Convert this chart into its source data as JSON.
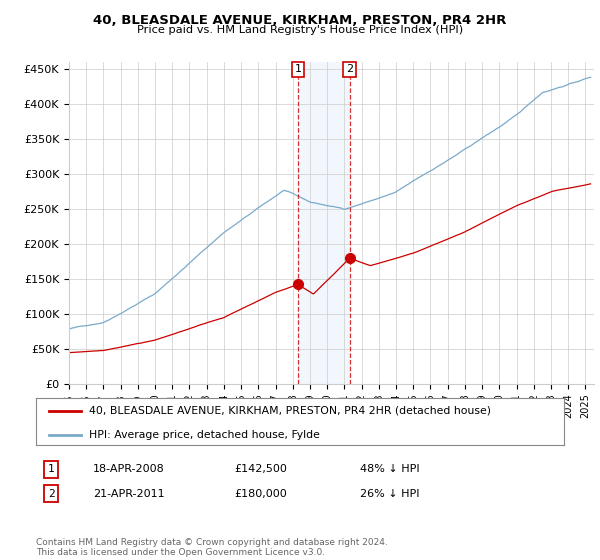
{
  "title": "40, BLEASDALE AVENUE, KIRKHAM, PRESTON, PR4 2HR",
  "subtitle": "Price paid vs. HM Land Registry's House Price Index (HPI)",
  "ylabel_ticks": [
    0,
    50000,
    100000,
    150000,
    200000,
    250000,
    300000,
    350000,
    400000,
    450000
  ],
  "ylabel_labels": [
    "£0",
    "£50K",
    "£100K",
    "£150K",
    "£200K",
    "£250K",
    "£300K",
    "£350K",
    "£400K",
    "£450K"
  ],
  "xlim": [
    1995.0,
    2025.5
  ],
  "ylim": [
    0,
    460000
  ],
  "red_color": "#cc0000",
  "blue_color": "#7aaaca",
  "vline_color": "#cc0000",
  "shade_color": "#d8eaf8",
  "grid_color": "#cccccc",
  "legend_label_red": "40, BLEASDALE AVENUE, KIRKHAM, PRESTON, PR4 2HR (detached house)",
  "legend_label_blue": "HPI: Average price, detached house, Fylde",
  "transaction1_label": "1",
  "transaction1_date": "18-APR-2008",
  "transaction1_price": "£142,500",
  "transaction1_hpi": "48% ↓ HPI",
  "transaction1_year": 2008.3,
  "transaction1_price_val": 142500,
  "transaction2_label": "2",
  "transaction2_date": "21-APR-2011",
  "transaction2_price": "£180,000",
  "transaction2_hpi": "26% ↓ HPI",
  "transaction2_year": 2011.3,
  "transaction2_price_val": 180000,
  "footnote": "Contains HM Land Registry data © Crown copyright and database right 2024.\nThis data is licensed under the Open Government Licence v3.0.",
  "background_color": "#ffffff",
  "plot_bg_color": "#ffffff"
}
